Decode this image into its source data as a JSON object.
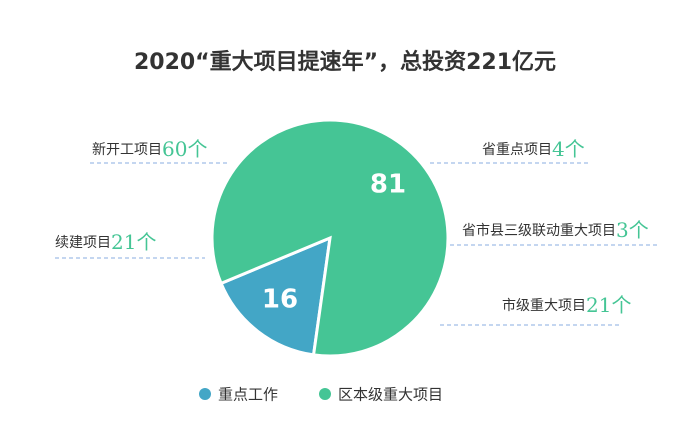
{
  "chart_data": {
    "type": "pie",
    "title": "2020“重大项目提速年”，总投资221亿元",
    "categories": [
      "重点工作",
      "区本级重大项目"
    ],
    "values": [
      16,
      81
    ],
    "colors": [
      "#43a6c6",
      "#45c595"
    ],
    "annotations": [
      {
        "text": "新开工项目",
        "number": "60个"
      },
      {
        "text": "续建项目",
        "number": "21个"
      },
      {
        "text": "省重点项目",
        "number": "4个"
      },
      {
        "text": "省市县三级联动重大项目",
        "number": "3个"
      },
      {
        "text": "市级重大项目",
        "number": "21个"
      }
    ]
  }
}
